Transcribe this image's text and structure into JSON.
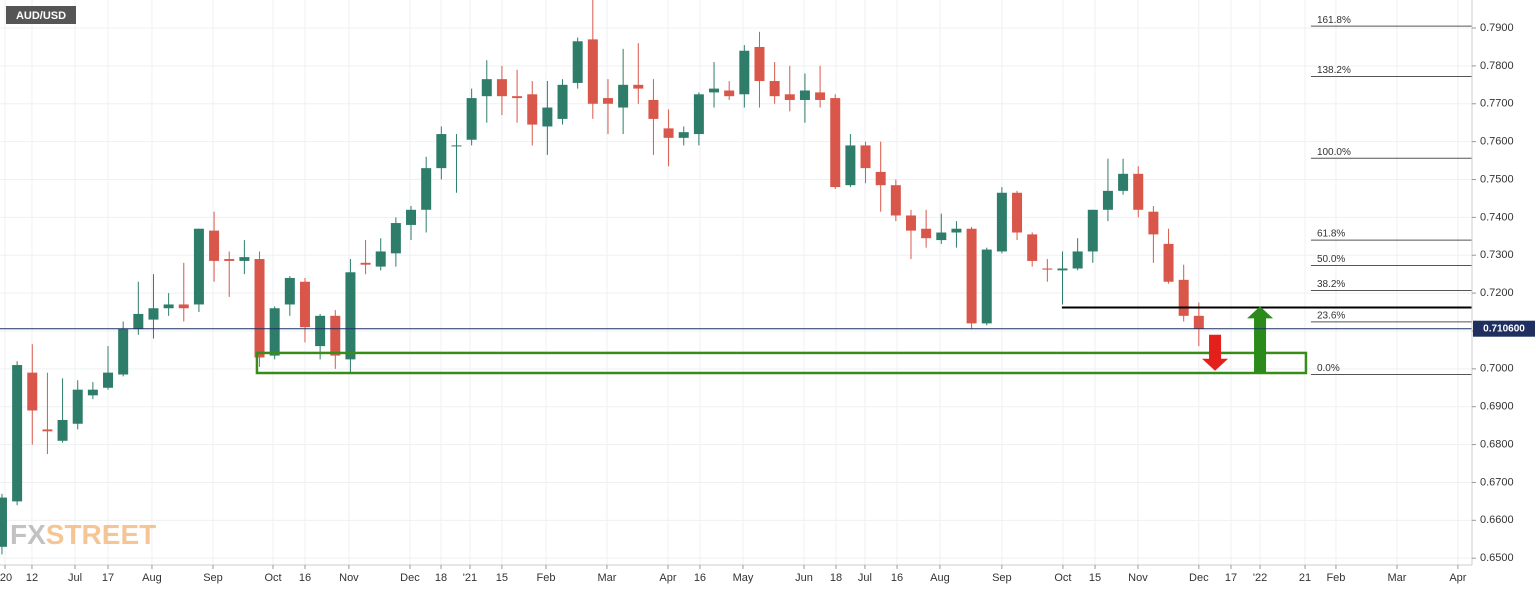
{
  "chart_data": {
    "type": "candlestick",
    "title": "AUD/USD",
    "watermark": [
      "FX",
      "STREET"
    ],
    "open": [
      0.653,
      0.665,
      0.699,
      0.684,
      0.681,
      0.6855,
      0.693,
      0.695,
      0.6985,
      0.7105,
      0.713,
      0.716,
      0.717,
      0.717,
      0.7365,
      0.729,
      0.7285,
      0.729,
      0.7035,
      0.717,
      0.723,
      0.706,
      0.714,
      0.7025,
      0.728,
      0.727,
      0.7305,
      0.738,
      0.742,
      0.753,
      0.759,
      0.7605,
      0.772,
      0.7765,
      0.772,
      0.7725,
      0.764,
      0.766,
      0.7755,
      0.787,
      0.7715,
      0.769,
      0.775,
      0.771,
      0.7635,
      0.761,
      0.762,
      0.773,
      0.7735,
      0.7725,
      0.785,
      0.776,
      0.7725,
      0.771,
      0.773,
      0.7715,
      0.7485,
      0.759,
      0.752,
      0.7485,
      0.7405,
      0.737,
      0.734,
      0.736,
      0.737,
      0.712,
      0.731,
      0.7465,
      0.7355,
      0.7265,
      0.726,
      0.7265,
      0.731,
      0.742,
      0.747,
      0.7515,
      0.7415,
      0.733,
      0.7235,
      0.714
    ],
    "high": [
      0.667,
      0.702,
      0.7065,
      0.699,
      0.6975,
      0.697,
      0.6965,
      0.706,
      0.7125,
      0.723,
      0.725,
      0.72,
      0.728,
      0.737,
      0.7415,
      0.731,
      0.734,
      0.731,
      0.7165,
      0.7245,
      0.724,
      0.7145,
      0.7155,
      0.729,
      0.734,
      0.7345,
      0.74,
      0.743,
      0.756,
      0.764,
      0.762,
      0.774,
      0.7815,
      0.78,
      0.779,
      0.776,
      0.776,
      0.7765,
      0.7875,
      0.8005,
      0.7765,
      0.7845,
      0.786,
      0.7765,
      0.7685,
      0.764,
      0.773,
      0.781,
      0.776,
      0.7855,
      0.789,
      0.781,
      0.78,
      0.778,
      0.78,
      0.7725,
      0.762,
      0.76,
      0.76,
      0.75,
      0.742,
      0.742,
      0.741,
      0.739,
      0.7375,
      0.732,
      0.748,
      0.747,
      0.736,
      0.729,
      0.731,
      0.7345,
      0.742,
      0.7555,
      0.7555,
      0.7535,
      0.743,
      0.737,
      0.7275,
      0.7175
    ],
    "low": [
      0.651,
      0.664,
      0.68,
      0.6775,
      0.6805,
      0.684,
      0.692,
      0.6945,
      0.698,
      0.709,
      0.708,
      0.714,
      0.7125,
      0.715,
      0.723,
      0.719,
      0.725,
      0.7005,
      0.7025,
      0.714,
      0.707,
      0.7025,
      0.7,
      0.699,
      0.725,
      0.726,
      0.727,
      0.734,
      0.736,
      0.75,
      0.7465,
      0.759,
      0.765,
      0.767,
      0.765,
      0.759,
      0.7565,
      0.7645,
      0.774,
      0.766,
      0.762,
      0.762,
      0.77,
      0.7565,
      0.7535,
      0.759,
      0.759,
      0.769,
      0.771,
      0.769,
      0.769,
      0.77,
      0.768,
      0.765,
      0.769,
      0.7475,
      0.748,
      0.749,
      0.7415,
      0.739,
      0.729,
      0.732,
      0.733,
      0.732,
      0.7105,
      0.7115,
      0.7305,
      0.734,
      0.727,
      0.723,
      0.717,
      0.726,
      0.728,
      0.739,
      0.746,
      0.74,
      0.728,
      0.7225,
      0.7125,
      0.706
    ],
    "close": [
      0.666,
      0.701,
      0.689,
      0.6835,
      0.6865,
      0.6945,
      0.6945,
      0.699,
      0.7105,
      0.7145,
      0.716,
      0.717,
      0.716,
      0.737,
      0.7285,
      0.7285,
      0.7295,
      0.703,
      0.716,
      0.724,
      0.711,
      0.714,
      0.7035,
      0.7255,
      0.7275,
      0.731,
      0.7385,
      0.742,
      0.753,
      0.762,
      0.759,
      0.7715,
      0.7765,
      0.772,
      0.7715,
      0.7645,
      0.769,
      0.775,
      0.7865,
      0.77,
      0.77,
      0.775,
      0.774,
      0.766,
      0.761,
      0.7625,
      0.7725,
      0.774,
      0.772,
      0.784,
      0.776,
      0.772,
      0.771,
      0.7735,
      0.771,
      0.748,
      0.759,
      0.753,
      0.7485,
      0.7405,
      0.7365,
      0.7345,
      0.736,
      0.737,
      0.712,
      0.7315,
      0.7465,
      0.736,
      0.7285,
      0.7262,
      0.7265,
      0.731,
      0.742,
      0.747,
      0.7515,
      0.742,
      0.7355,
      0.723,
      0.714,
      0.7106
    ],
    "up_color": "#2e7d6b",
    "down_color": "#d9574a",
    "xlim": [
      -0.13,
      97.03
    ],
    "ylim": [
      0.6482,
      0.7974
    ],
    "xticks": [
      {
        "value": 0.2,
        "label": "'20"
      },
      {
        "value": 1.98,
        "label": "12"
      },
      {
        "value": 4.82,
        "label": "Jul"
      },
      {
        "value": 7.0,
        "label": "17"
      },
      {
        "value": 9.9,
        "label": "Aug"
      },
      {
        "value": 13.93,
        "label": "Sep"
      },
      {
        "value": 17.89,
        "label": "Oct"
      },
      {
        "value": 20.0,
        "label": "16"
      },
      {
        "value": 22.9,
        "label": "Nov"
      },
      {
        "value": 26.93,
        "label": "Dec"
      },
      {
        "value": 28.98,
        "label": "18"
      },
      {
        "value": 30.89,
        "label": "'21"
      },
      {
        "value": 33.0,
        "label": "15"
      },
      {
        "value": 35.91,
        "label": "Feb"
      },
      {
        "value": 39.93,
        "label": "Mar"
      },
      {
        "value": 43.96,
        "label": "Apr"
      },
      {
        "value": 46.07,
        "label": "16"
      },
      {
        "value": 48.91,
        "label": "May"
      },
      {
        "value": 52.94,
        "label": "Jun"
      },
      {
        "value": 55.05,
        "label": "18"
      },
      {
        "value": 56.96,
        "label": "Jul"
      },
      {
        "value": 59.08,
        "label": "16"
      },
      {
        "value": 61.91,
        "label": "Aug"
      },
      {
        "value": 66.0,
        "label": "Sep"
      },
      {
        "value": 70.03,
        "label": "Oct"
      },
      {
        "value": 72.15,
        "label": "15"
      },
      {
        "value": 74.98,
        "label": "Nov"
      },
      {
        "value": 79.0,
        "label": "Dec"
      },
      {
        "value": 81.12,
        "label": "17"
      },
      {
        "value": 83.04,
        "label": "'22"
      },
      {
        "value": 86.01,
        "label": "21"
      },
      {
        "value": 88.05,
        "label": "Feb"
      },
      {
        "value": 92.08,
        "label": "Mar"
      },
      {
        "value": 96.1,
        "label": "Apr"
      }
    ],
    "yticks": [
      {
        "value": 0.65,
        "label": "0.6500"
      },
      {
        "value": 0.66,
        "label": "0.6600"
      },
      {
        "value": 0.67,
        "label": "0.6700"
      },
      {
        "value": 0.68,
        "label": "0.6800"
      },
      {
        "value": 0.69,
        "label": "0.6900"
      },
      {
        "value": 0.7,
        "label": "0.7000"
      },
      {
        "value": 0.71,
        "label": "0.7100"
      },
      {
        "value": 0.72,
        "label": "0.7200"
      },
      {
        "value": 0.73,
        "label": "0.7300"
      },
      {
        "value": 0.74,
        "label": "0.7400"
      },
      {
        "value": 0.75,
        "label": "0.7500"
      },
      {
        "value": 0.76,
        "label": "0.7600"
      },
      {
        "value": 0.77,
        "label": "0.7700"
      },
      {
        "value": 0.78,
        "label": "0.7800"
      },
      {
        "value": 0.79,
        "label": "0.7900"
      }
    ],
    "grid": true,
    "last_price": {
      "value": 0.7106,
      "label": "0.710600"
    },
    "fib_levels": [
      {
        "value": 0.7905,
        "label": "161.8%"
      },
      {
        "value": 0.7772,
        "label": "138.2%"
      },
      {
        "value": 0.7556,
        "label": "100.0%"
      },
      {
        "value": 0.734,
        "label": "61.8%"
      },
      {
        "value": 0.7273,
        "label": "50.0%"
      },
      {
        "value": 0.7207,
        "label": "38.2%"
      },
      {
        "value": 0.7124,
        "label": "23.6%"
      },
      {
        "value": 0.6985,
        "label": "0.0%"
      }
    ],
    "fib_start_x": 86.4,
    "level_line": {
      "value": 0.7162,
      "x_start": 69.96,
      "color": "#000000"
    },
    "support_zone": {
      "x": [
        16.83,
        86.07
      ],
      "y": [
        0.6989,
        0.7042
      ],
      "color": "#3a8c1a"
    },
    "arrows": [
      {
        "x": 80.07,
        "from": 0.709,
        "to": 0.6995,
        "color": "#e3201b"
      },
      {
        "x": 83.04,
        "from": 0.699,
        "to": 0.7165,
        "color": "#2a8a1a"
      }
    ]
  }
}
